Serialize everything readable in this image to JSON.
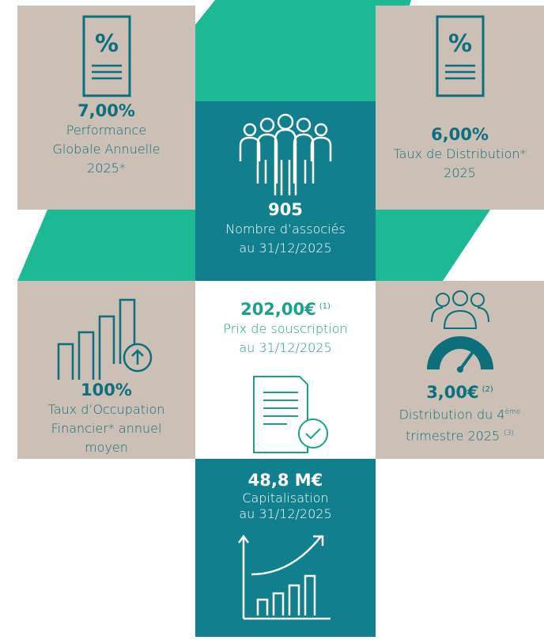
{
  "tiles": [
    {
      "value": "7,00%",
      "lines": [
        "Performance",
        "Globale Annuelle",
        "2025*"
      ]
    },
    {
      "value": "905",
      "lines": [
        "Nombre d’associés",
        "au 31/12/2025"
      ]
    },
    {
      "value": "6,00%",
      "lines": [
        "Taux de Distribution*",
        "2025"
      ]
    },
    {
      "value": "100%",
      "lines": [
        "Taux d’Occupation",
        "Financier* annuel",
        "moyen"
      ]
    },
    {
      "value": "202,00€",
      "note": "(1)",
      "lines": [
        "Prix de souscription",
        "au 31/12/2025"
      ]
    },
    {
      "value": "3,00€",
      "note": "(2)",
      "line1": "Distribution du 4",
      "sup1": "ème",
      "line2": "trimestre 2025",
      "sup2": "(3)"
    },
    {
      "value": "48,8 M€",
      "lines": [
        "Capitalisation",
        "au 31/12/2025"
      ]
    }
  ]
}
